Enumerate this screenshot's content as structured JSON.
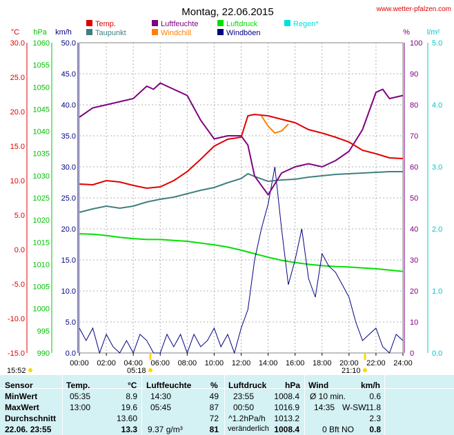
{
  "title": "Montag, 22.06.2015",
  "website": "www.wetter-pfalzen.com",
  "colors": {
    "temp": "#e00000",
    "dewpoint": "#3f7f7f",
    "humidity": "#800080",
    "windchill": "#ff8000",
    "pressure": "#00e000",
    "gusts": "#000080",
    "rain": "#00e0e0",
    "table_bg": "#d4f1f4"
  },
  "chart_data": {
    "type": "line",
    "title": "Montag, 22.06.2015",
    "x_ticks": [
      "00:00",
      "02:00",
      "04:00",
      "06:00",
      "08:00",
      "10:00",
      "12:00",
      "14:00",
      "16:00",
      "18:00",
      "20:00",
      "22:00",
      "24:00"
    ],
    "axes": {
      "temp": {
        "unit": "°C",
        "range": [
          -15.0,
          30.0
        ],
        "ticks": [
          "-15.0",
          "-10.0",
          "-5.0",
          "0.0",
          "5.0",
          "10.0",
          "15.0",
          "20.0",
          "25.0",
          "30.0"
        ]
      },
      "pressure": {
        "unit": "hPa",
        "range": [
          990,
          1060
        ],
        "ticks": [
          "990",
          "995",
          "1000",
          "1005",
          "1010",
          "1015",
          "1020",
          "1025",
          "1030",
          "1035",
          "1040",
          "1045",
          "1050",
          "1055",
          "1060"
        ]
      },
      "wind": {
        "unit": "km/h",
        "range": [
          0.0,
          50.0
        ],
        "ticks": [
          "0.0",
          "5.0",
          "10.0",
          "15.0",
          "20.0",
          "25.0",
          "30.0",
          "35.0",
          "40.0",
          "45.0",
          "50.0"
        ]
      },
      "humidity": {
        "unit": "%",
        "range": [
          0,
          100
        ],
        "ticks": [
          "0",
          "10",
          "20",
          "30",
          "40",
          "50",
          "60",
          "70",
          "80",
          "90",
          "100"
        ]
      },
      "rain": {
        "unit": "l/m²",
        "range": [
          0.0,
          5.0
        ],
        "ticks": [
          "0.0",
          "1.0",
          "2.0",
          "3.0",
          "4.0",
          "5.0"
        ]
      }
    },
    "legend": [
      {
        "name": "Temp.",
        "color": "#e00000"
      },
      {
        "name": "Taupunkt",
        "color": "#3f7f7f"
      },
      {
        "name": "Luftfeuchte",
        "color": "#800080"
      },
      {
        "name": "Windchill",
        "color": "#ff8000"
      },
      {
        "name": "Luftdruck",
        "color": "#00e000"
      },
      {
        "name": "Windböen",
        "color": "#000080"
      },
      {
        "name": "Regen*",
        "color": "#00e0e0"
      }
    ],
    "series": [
      {
        "name": "Temp.",
        "axis": "temp",
        "x": [
          0,
          1,
          2,
          3,
          4,
          5,
          6,
          7,
          8,
          9,
          10,
          11,
          12,
          12.5,
          13,
          14,
          15,
          16,
          17,
          18,
          19,
          20,
          21,
          22,
          23,
          24
        ],
        "values": [
          9.5,
          9.4,
          10.0,
          9.8,
          9.3,
          8.9,
          9.1,
          10.0,
          11.3,
          13.1,
          15.0,
          16.0,
          16.3,
          19.4,
          19.6,
          19.4,
          18.9,
          18.4,
          17.4,
          16.9,
          16.3,
          15.6,
          14.4,
          13.9,
          13.3,
          13.2
        ]
      },
      {
        "name": "Taupunkt",
        "axis": "temp",
        "x": [
          0,
          1,
          2,
          3,
          4,
          5,
          6,
          7,
          8,
          9,
          10,
          11,
          12,
          12.5,
          13,
          14,
          15,
          16,
          17,
          18,
          19,
          20,
          21,
          22,
          23,
          24
        ],
        "values": [
          5.4,
          5.9,
          6.3,
          6.0,
          6.3,
          6.9,
          7.3,
          7.6,
          8.1,
          8.6,
          9.0,
          9.7,
          10.3,
          11.0,
          10.6,
          9.9,
          10.1,
          10.2,
          10.5,
          10.7,
          10.9,
          11.0,
          11.1,
          11.2,
          11.3,
          11.3
        ]
      },
      {
        "name": "Luftfeuchte",
        "axis": "humidity",
        "x": [
          0,
          1,
          2,
          3,
          4,
          4.5,
          5,
          5.5,
          6,
          6.5,
          7,
          8,
          9,
          10,
          11,
          12,
          12.5,
          13,
          14,
          15,
          16,
          17,
          18,
          19,
          20,
          21,
          22,
          22.5,
          23,
          24
        ],
        "values": [
          76,
          79,
          80,
          81,
          82,
          84,
          86,
          85,
          87,
          86,
          85,
          83,
          75,
          69,
          70,
          70,
          67,
          57,
          51,
          58,
          60,
          61,
          60,
          62,
          65,
          72,
          84,
          85,
          82,
          83
        ]
      },
      {
        "name": "Windchill",
        "axis": "temp",
        "x": [
          13.5,
          14,
          14.5,
          15,
          15.5
        ],
        "values": [
          19.4,
          17.9,
          16.9,
          17.2,
          18.2
        ]
      },
      {
        "name": "Luftdruck",
        "axis": "pressure",
        "x": [
          0,
          1,
          2,
          3,
          4,
          5,
          6,
          7,
          8,
          9,
          10,
          11,
          12,
          13,
          14,
          15,
          16,
          17,
          18,
          19,
          20,
          21,
          22,
          23,
          24
        ],
        "values": [
          1016.9,
          1016.8,
          1016.5,
          1016.1,
          1015.8,
          1015.6,
          1015.6,
          1015.4,
          1015.2,
          1014.8,
          1014.4,
          1013.9,
          1013.2,
          1012.4,
          1011.6,
          1010.9,
          1010.4,
          1010.0,
          1009.7,
          1009.5,
          1009.4,
          1009.2,
          1009.0,
          1008.7,
          1008.4
        ]
      },
      {
        "name": "Windböen",
        "axis": "wind",
        "x": [
          0,
          0.5,
          1,
          1.5,
          2,
          2.5,
          3,
          3.5,
          4,
          4.5,
          5,
          5.5,
          6,
          6.5,
          7,
          7.5,
          8,
          8.5,
          9,
          9.5,
          10,
          10.5,
          11,
          11.5,
          12,
          12.5,
          13,
          13.5,
          14,
          14.5,
          15,
          15.5,
          16,
          16.5,
          17,
          17.5,
          18,
          18.5,
          19,
          19.5,
          20,
          20.5,
          21,
          21.5,
          22,
          22.5,
          23,
          23.5,
          24
        ],
        "values": [
          4,
          2,
          4,
          0,
          3,
          1,
          0,
          2,
          0,
          3,
          2,
          0,
          0,
          3,
          1,
          3,
          0,
          3,
          1,
          2,
          4,
          1,
          3,
          0,
          4,
          7,
          15,
          20,
          24,
          30,
          20,
          11,
          15,
          20,
          12,
          9,
          16,
          14,
          13,
          11,
          9,
          5,
          2,
          3,
          4,
          1,
          0,
          3,
          2
        ]
      }
    ]
  },
  "markers": {
    "sunrise_left": "15:52",
    "sunrise": "05:18",
    "sunset": "21:10"
  },
  "table": {
    "headers": {
      "sensor": "Sensor",
      "temp": "Temp.",
      "temp_unit": "°C",
      "hum": "Luftfeuchte",
      "hum_unit": "%",
      "press": "Luftdruck",
      "press_unit": "hPa",
      "wind": "Wind",
      "wind_unit": "km/h"
    },
    "min": {
      "label": "MinWert",
      "temp_time": "05:35",
      "temp_val": "8.9",
      "hum_time": "14:30",
      "hum_val": "49",
      "press_time": "23:55",
      "press_val": "1008.4",
      "wind_time": "Ø 10 min.",
      "wind_val": "0.6"
    },
    "max": {
      "label": "MaxWert",
      "temp_time": "13:00",
      "temp_val": "19.6",
      "hum_time": "05:45",
      "hum_val": "87",
      "press_time": "00:50",
      "press_val": "1016.9",
      "wind_time": "14:35",
      "wind_dir": "W-SW",
      "wind_val": "11.8"
    },
    "avg": {
      "label": "Durchschnitt",
      "temp_val": "13.60",
      "hum_val": "72",
      "press_time": "^1.2hPa/h",
      "press_val": "1013.2",
      "wind_val": "2.3"
    },
    "current": {
      "label": "22.06. 23:55",
      "temp_val": "13.3",
      "hum_abs": "9.37 g/m³",
      "hum_val": "81",
      "press_trend": "veränderlich",
      "press_val": "1008.4",
      "wind_bft": "0 Bft NO",
      "wind_val": "0.8"
    }
  }
}
